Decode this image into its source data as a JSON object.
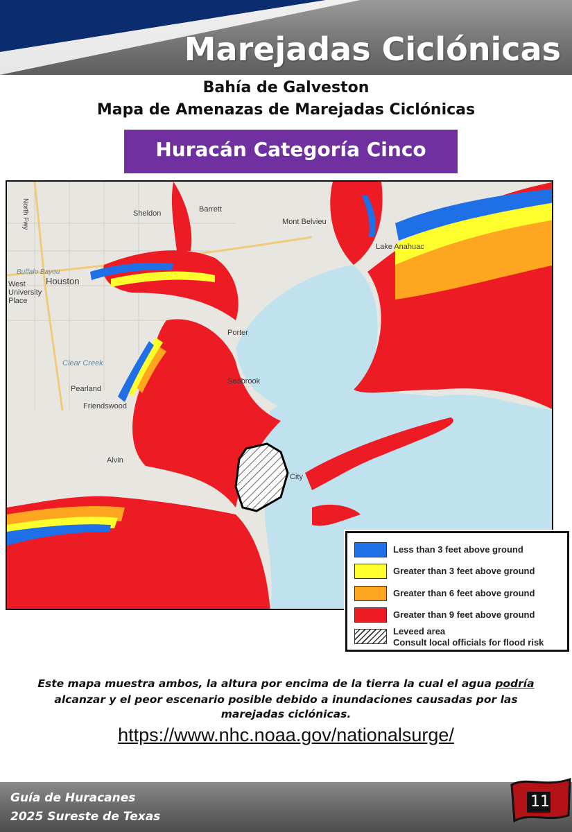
{
  "header": {
    "title": "Marejadas Ciclónicas",
    "accent_color": "#0b2c6e"
  },
  "subtitle": {
    "line1": "Bahía de Galveston",
    "line2": "Mapa de Amenazas de Marejadas Ciclónicas"
  },
  "category": {
    "label": "Huracán Categoría Cinco",
    "color": "#7030a0"
  },
  "map": {
    "places": [
      "Sheldon",
      "Barrett",
      "Mont Belvieu",
      "Lake Anahuac",
      "Houston",
      "West University Place",
      "Porter",
      "Seabrook",
      "Pearland",
      "Friendswood",
      "Alvin",
      "City",
      "Clear Creek",
      "Buffalo Bayou",
      "North Fwy"
    ],
    "colors": {
      "water": "#bfe2ee",
      "land": "#e8e6e1",
      "low": "#1f6fe6",
      "mid": "#ffff2e",
      "high": "#ffa621",
      "extreme": "#ed1c24"
    }
  },
  "legend": {
    "items": [
      {
        "label": "Less than 3 feet above ground",
        "color": "#1f6fe6"
      },
      {
        "label": "Greater than 3 feet above ground",
        "color": "#ffff2e"
      },
      {
        "label": "Greater than 6 feet above ground",
        "color": "#ffa621"
      },
      {
        "label": "Greater than 9 feet above ground",
        "color": "#ed1c24"
      }
    ],
    "levee_line1": "Leveed area",
    "levee_line2": "Consult local officials for flood risk"
  },
  "caption": {
    "line1_before": "Este mapa muestra ambos, la altura por encima de la tierra la cual el agua ",
    "line1_underlined": "podría",
    "line2": "alcanzar y el peor escenario posible debido a inundaciones causadas por las",
    "line3": "marejadas ciclónicas."
  },
  "url": "https://www.nhc.noaa.gov/nationalsurge/",
  "footer": {
    "line1": "Guía de Huracanes",
    "line2": "2025 Sureste de Texas",
    "page_number": "11"
  }
}
